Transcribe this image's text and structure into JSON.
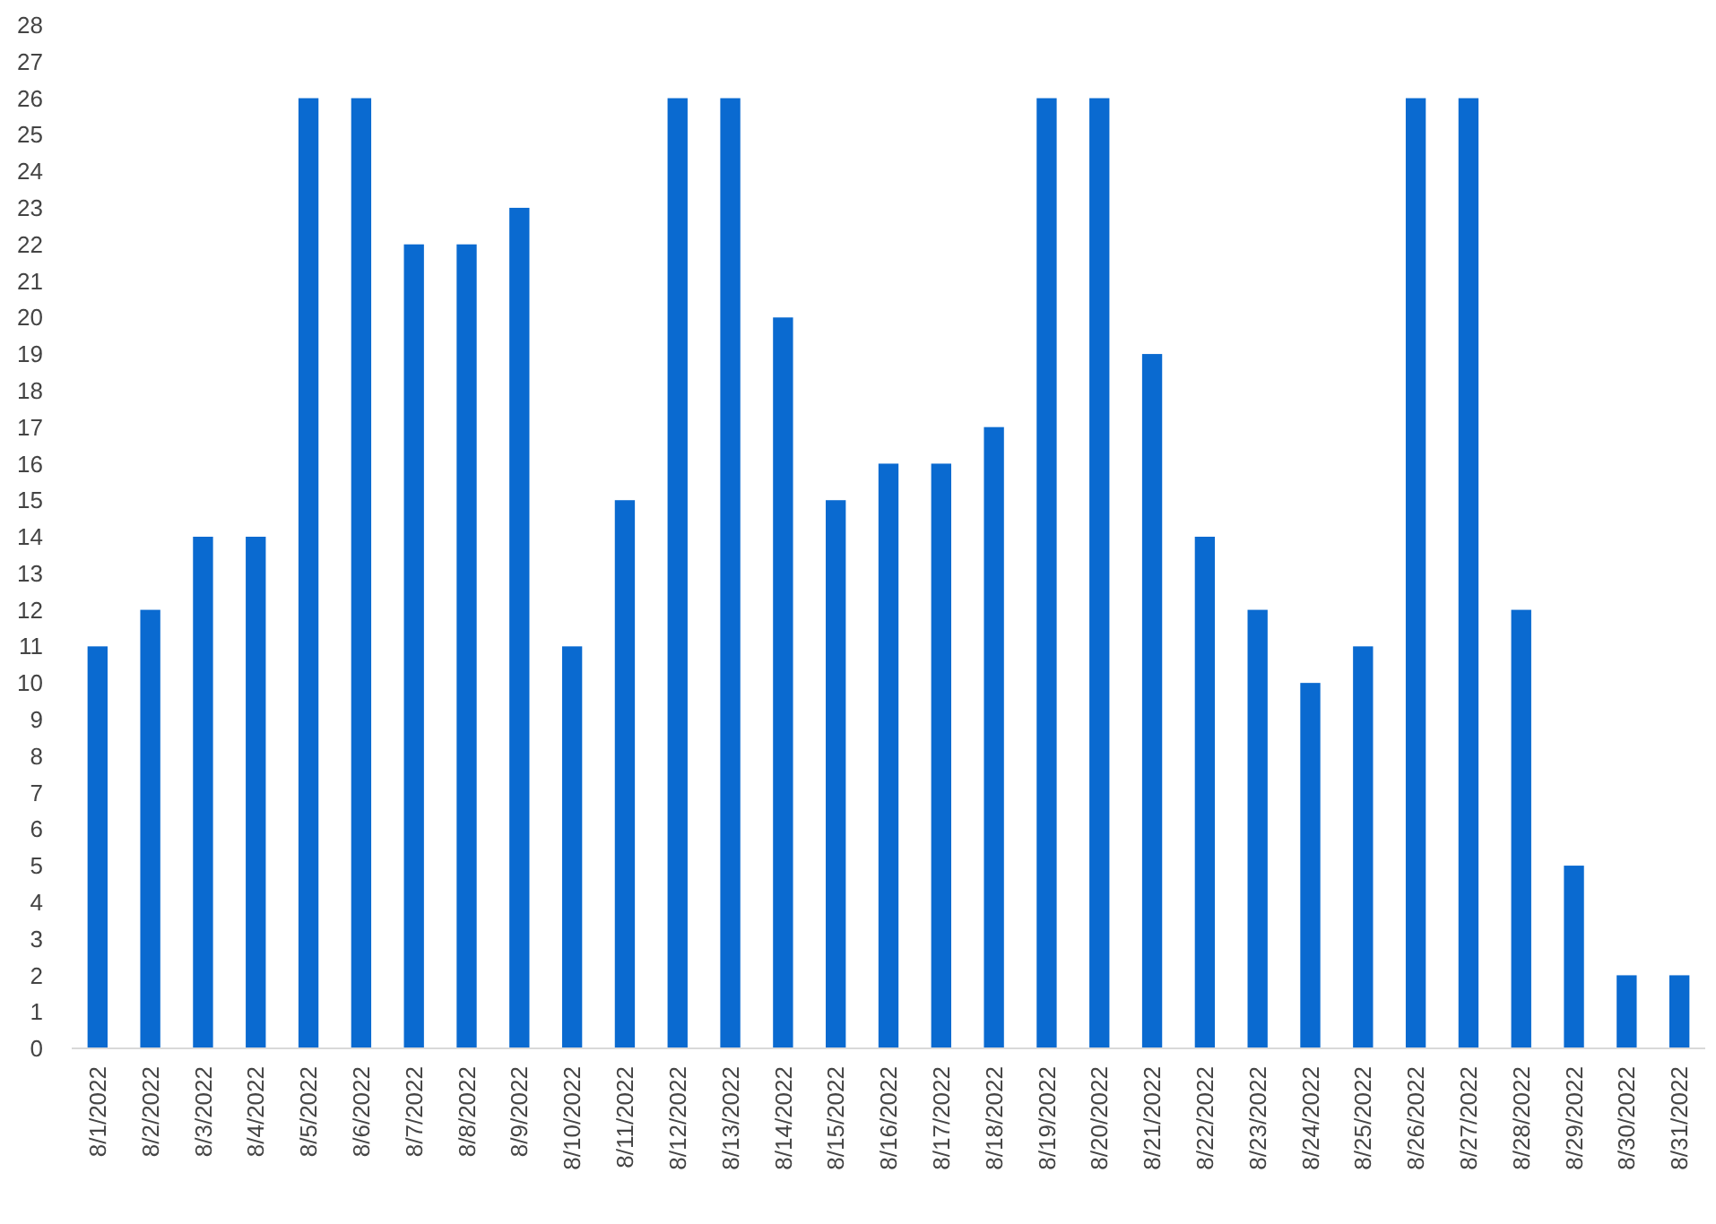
{
  "chart_data": {
    "type": "bar",
    "categories": [
      "8/1/2022",
      "8/2/2022",
      "8/3/2022",
      "8/4/2022",
      "8/5/2022",
      "8/6/2022",
      "8/7/2022",
      "8/8/2022",
      "8/9/2022",
      "8/10/2022",
      "8/11/2022",
      "8/12/2022",
      "8/13/2022",
      "8/14/2022",
      "8/15/2022",
      "8/16/2022",
      "8/17/2022",
      "8/18/2022",
      "8/19/2022",
      "8/20/2022",
      "8/21/2022",
      "8/22/2022",
      "8/23/2022",
      "8/24/2022",
      "8/25/2022",
      "8/26/2022",
      "8/27/2022",
      "8/28/2022",
      "8/29/2022",
      "8/30/2022",
      "8/31/2022"
    ],
    "values": [
      11,
      12,
      14,
      14,
      26,
      26,
      22,
      22,
      23,
      11,
      15,
      26,
      26,
      20,
      15,
      16,
      16,
      17,
      26,
      26,
      19,
      14,
      12,
      10,
      11,
      26,
      26,
      12,
      5,
      2,
      2
    ],
    "color": "#0a6ad0",
    "ylim": [
      0,
      28
    ],
    "yticks": [
      0,
      1,
      2,
      3,
      4,
      5,
      6,
      7,
      8,
      9,
      10,
      11,
      12,
      13,
      14,
      15,
      16,
      17,
      18,
      19,
      20,
      21,
      22,
      23,
      24,
      25,
      26,
      27,
      28
    ],
    "grid": false
  }
}
